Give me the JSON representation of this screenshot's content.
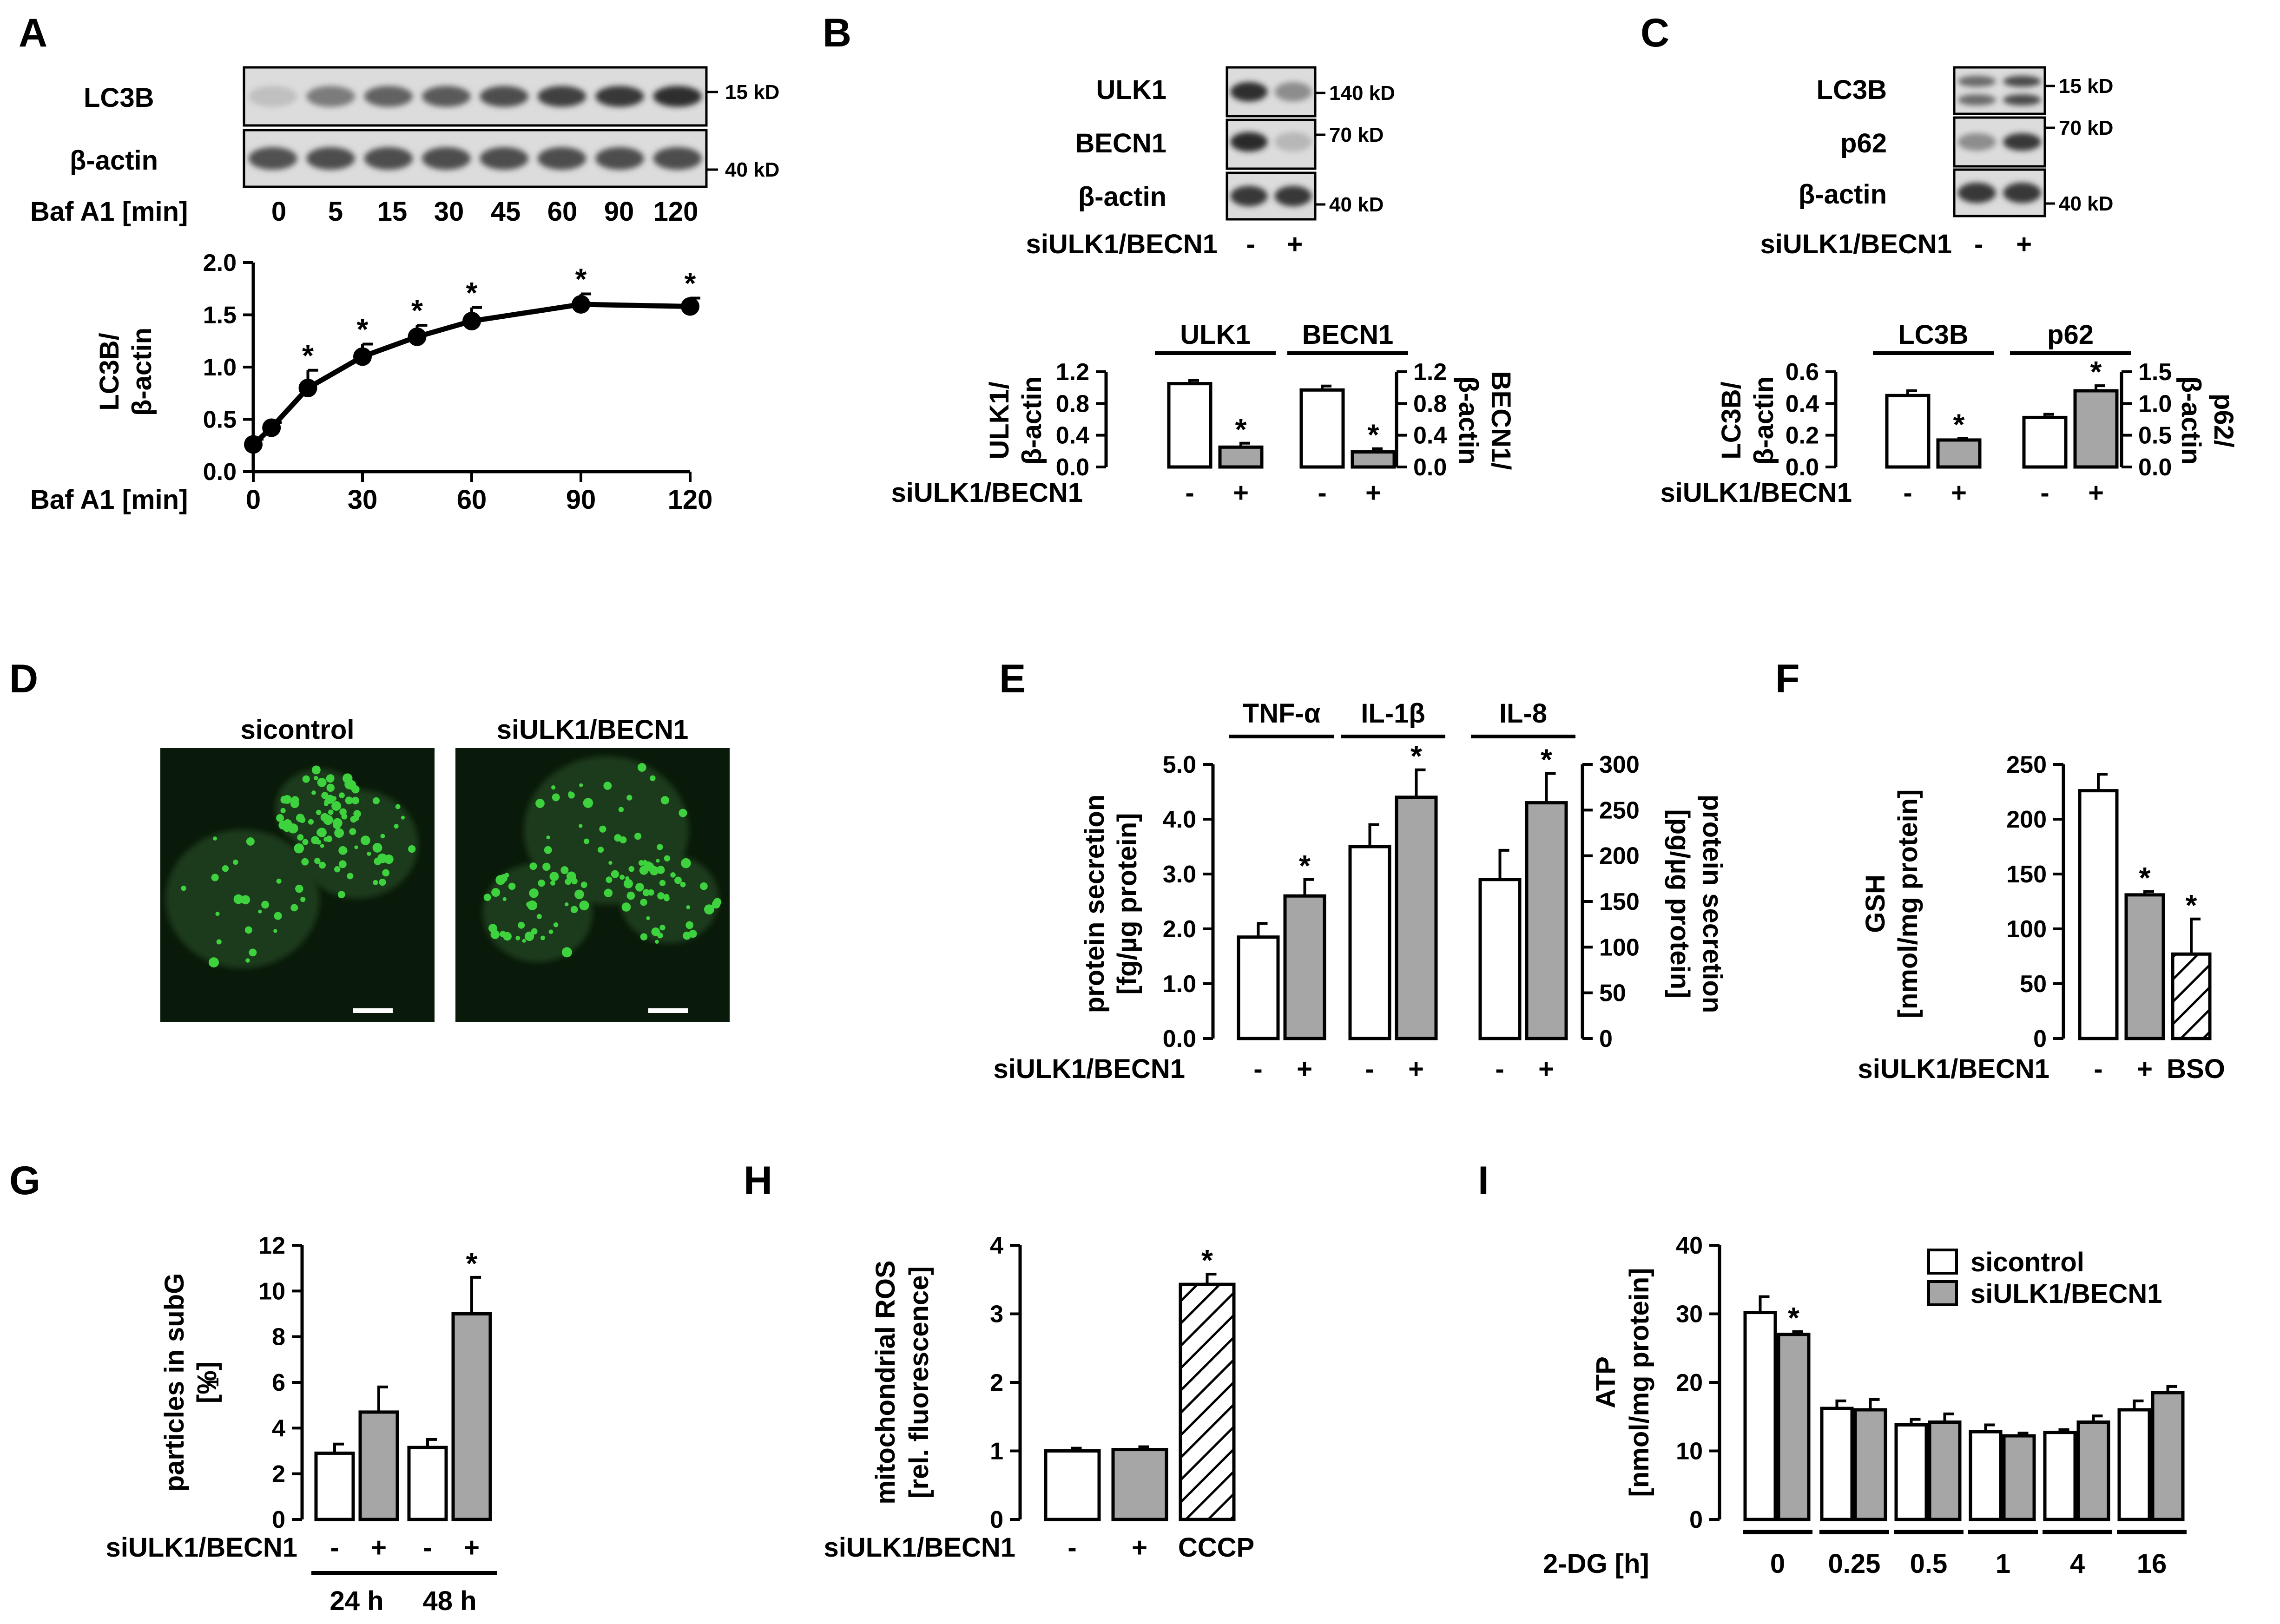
{
  "panels": {
    "A": {
      "label": "A",
      "blot_rows": [
        "LC3B",
        "β-actin"
      ],
      "markers": [
        "15 kD",
        "40 kD"
      ],
      "condition_label": "Baf A1 [min]",
      "lane_labels": [
        "0",
        "5",
        "15",
        "30",
        "45",
        "60",
        "90",
        "120"
      ],
      "chart_data": {
        "type": "line",
        "x": [
          0,
          5,
          15,
          30,
          45,
          60,
          90,
          120
        ],
        "values": [
          0.26,
          0.42,
          0.8,
          1.1,
          1.29,
          1.44,
          1.6,
          1.58
        ],
        "errors": [
          0.05,
          0.05,
          0.17,
          0.12,
          0.11,
          0.13,
          0.1,
          0.08
        ],
        "significant": [
          false,
          false,
          true,
          true,
          true,
          true,
          true,
          true
        ],
        "xlabel": "Baf A1 [min]",
        "ylabel": [
          "LC3B/",
          "β-actin"
        ],
        "xticks": [
          "0",
          "30",
          "60",
          "90",
          "120"
        ],
        "yticks": [
          "0.0",
          "0.5",
          "1.0",
          "1.5",
          "2.0"
        ],
        "ylim": [
          0,
          2
        ]
      }
    },
    "B": {
      "label": "B",
      "blot_rows": [
        "ULK1",
        "BECN1",
        "β-actin"
      ],
      "markers": [
        "140 kD",
        "70 kD",
        "40 kD"
      ],
      "condition_label": "siULK1/BECN1",
      "lane_labels": [
        "-",
        "+"
      ],
      "chart_data": [
        {
          "type": "bar",
          "title": "ULK1",
          "categories": [
            "-",
            "+"
          ],
          "values": [
            1.05,
            0.25
          ],
          "errors": [
            0.04,
            0.05
          ],
          "significant": [
            false,
            true
          ],
          "ylabel": [
            "ULK1/",
            "β-actin"
          ],
          "yticks": [
            "0.0",
            "0.4",
            "0.8",
            "1.2"
          ],
          "ylim": [
            0,
            1.2
          ]
        },
        {
          "type": "bar",
          "title": "BECN1",
          "categories": [
            "-",
            "+"
          ],
          "values": [
            0.97,
            0.19
          ],
          "errors": [
            0.05,
            0.04
          ],
          "significant": [
            false,
            true
          ],
          "ylabel": [
            "BECN1/",
            "β-actin"
          ],
          "yticks": [
            "0.0",
            "0.4",
            "0.8",
            "1.2"
          ],
          "ylim": [
            0,
            1.2
          ]
        }
      ]
    },
    "C": {
      "label": "C",
      "blot_rows": [
        "LC3B",
        "p62",
        "β-actin"
      ],
      "markers": [
        "15 kD",
        "70 kD",
        "40 kD"
      ],
      "condition_label": "siULK1/BECN1",
      "lane_labels": [
        "-",
        "+"
      ],
      "chart_data": [
        {
          "type": "bar",
          "title": "LC3B",
          "categories": [
            "-",
            "+"
          ],
          "values": [
            0.45,
            0.17
          ],
          "errors": [
            0.03,
            0.01
          ],
          "significant": [
            false,
            true
          ],
          "ylabel": [
            "LC3B/",
            "β-actin"
          ],
          "yticks": [
            "0.0",
            "0.2",
            "0.4",
            "0.6"
          ],
          "ylim": [
            0,
            0.6
          ]
        },
        {
          "type": "bar",
          "title": "p62",
          "categories": [
            "-",
            "+"
          ],
          "values": [
            0.78,
            1.2
          ],
          "errors": [
            0.05,
            0.08
          ],
          "significant": [
            false,
            true
          ],
          "ylabel": [
            "p62/",
            "β-actin"
          ],
          "yticks": [
            "0.0",
            "0.5",
            "1.0",
            "1.5"
          ],
          "ylim": [
            0,
            1.5
          ]
        }
      ]
    },
    "D": {
      "label": "D",
      "image_titles": [
        "sicontrol",
        "siULK1/BECN1"
      ]
    },
    "E": {
      "label": "E",
      "condition_label": "siULK1/BECN1",
      "chart_data": {
        "type": "bar",
        "groups": [
          "TNF-α",
          "IL-1β",
          "IL-8"
        ],
        "categories": [
          "-",
          "+",
          "-",
          "+",
          "-",
          "+"
        ],
        "values_left_axis": [
          1.85,
          2.6,
          3.5,
          4.4
        ],
        "errors_left_axis": [
          0.25,
          0.3,
          0.4,
          0.5
        ],
        "values_right_axis": [
          174,
          258
        ],
        "errors_right_axis": [
          32,
          32
        ],
        "significant": [
          false,
          true,
          false,
          true,
          false,
          true
        ],
        "ylabel_left": [
          "protein secretion",
          "[fg/µg protein]"
        ],
        "ylabel_right": [
          "protein secretion",
          "[pg/µg protein]"
        ],
        "yticks_left": [
          "0.0",
          "1.0",
          "2.0",
          "3.0",
          "4.0",
          "5.0"
        ],
        "yticks_right": [
          "0",
          "50",
          "100",
          "150",
          "200",
          "250",
          "300"
        ],
        "ylim_left": [
          0,
          5
        ],
        "ylim_right": [
          0,
          300
        ]
      }
    },
    "F": {
      "label": "F",
      "condition_label": "siULK1/BECN1",
      "chart_data": {
        "type": "bar",
        "categories": [
          "-",
          "+",
          "BSO"
        ],
        "values": [
          226,
          131,
          77
        ],
        "errors": [
          15,
          3,
          32
        ],
        "significant": [
          false,
          true,
          true
        ],
        "hatched": [
          false,
          false,
          true
        ],
        "ylabel": [
          "GSH",
          "[nmol/mg protein]"
        ],
        "yticks": [
          "0",
          "50",
          "100",
          "150",
          "200",
          "250"
        ],
        "ylim": [
          0,
          250
        ]
      }
    },
    "G": {
      "label": "G",
      "condition_label": "siULK1/BECN1",
      "chart_data": {
        "type": "bar",
        "groups": [
          "24 h",
          "48 h"
        ],
        "categories": [
          "-",
          "+",
          "-",
          "+"
        ],
        "values": [
          2.9,
          4.7,
          3.15,
          9.0
        ],
        "errors": [
          0.4,
          1.1,
          0.35,
          1.6
        ],
        "significant": [
          false,
          false,
          false,
          true
        ],
        "ylabel": [
          "particles in subG",
          "[%]"
        ],
        "ylabel_subscript": "1",
        "yticks": [
          "0",
          "2",
          "4",
          "6",
          "8",
          "10",
          "12"
        ],
        "ylim": [
          0,
          12
        ]
      }
    },
    "H": {
      "label": "H",
      "condition_label": "siULK1/BECN1",
      "chart_data": {
        "type": "bar",
        "categories": [
          "-",
          "+",
          "CCCP"
        ],
        "values": [
          1.0,
          1.02,
          3.43
        ],
        "errors": [
          0.04,
          0.04,
          0.15
        ],
        "significant": [
          false,
          false,
          true
        ],
        "hatched": [
          false,
          false,
          true
        ],
        "ylabel": [
          "mitochondrial ROS",
          "[rel. fluorescence]"
        ],
        "yticks": [
          "0",
          "1",
          "2",
          "3",
          "4"
        ],
        "ylim": [
          0,
          4
        ]
      }
    },
    "I": {
      "label": "I",
      "chart_data": {
        "type": "bar",
        "categories": [
          "0",
          "0.25",
          "0.5",
          "1",
          "4",
          "16"
        ],
        "xlabel": "2-DG [h]",
        "series": [
          {
            "name": "sicontrol",
            "values": [
              30.2,
              16.2,
              13.8,
              12.8,
              12.7,
              16.0
            ],
            "errors": [
              2.3,
              1.1,
              0.8,
              1.0,
              0.4,
              1.3
            ],
            "significant": [
              false,
              false,
              false,
              false,
              false,
              false
            ]
          },
          {
            "name": "siULK1/BECN1",
            "values": [
              27.0,
              16.0,
              14.2,
              12.2,
              14.2,
              18.5
            ],
            "errors": [
              0.4,
              1.5,
              1.2,
              0.4,
              0.9,
              0.9
            ],
            "significant": [
              true,
              false,
              false,
              false,
              false,
              false
            ]
          }
        ],
        "ylabel": [
          "ATP",
          "[nmol/mg protein]"
        ],
        "yticks": [
          "0",
          "10",
          "20",
          "30",
          "40"
        ],
        "ylim": [
          0,
          40
        ],
        "legend_position": "top-right"
      }
    }
  },
  "symbols": {
    "significance": "*"
  },
  "colors": {
    "open_bar": "#ffffff",
    "filled_bar": "#a6a6a6",
    "axis": "#000000",
    "fluorescence": "#3fd23f",
    "micrograph_bg": "#0a1a0a",
    "blot_bg": "#dcdcdc"
  }
}
